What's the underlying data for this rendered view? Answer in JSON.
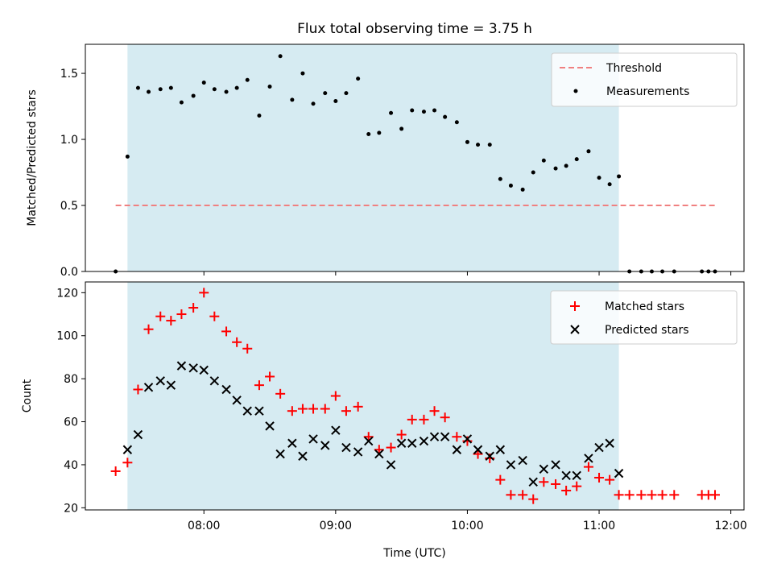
{
  "chart_data": [
    {
      "type": "scatter",
      "title": "Flux total observing time = 3.75 h",
      "xlabel": "",
      "ylabel": "Matched/Predicted stars",
      "xlim_hours": [
        7.1,
        12.1
      ],
      "ylim": [
        0,
        1.72
      ],
      "yticks": [
        0.0,
        0.5,
        1.0,
        1.5
      ],
      "ytick_labels": [
        "0.0",
        "0.5",
        "1.0",
        "1.5"
      ],
      "observing_window_hours": [
        7.42,
        11.15
      ],
      "threshold": {
        "name": "Threshold",
        "value": 0.5,
        "x_range_hours": [
          7.33,
          11.88
        ],
        "color": "#f08080"
      },
      "legend": {
        "placement": "top-right",
        "entries": [
          "Threshold",
          "Measurements"
        ]
      },
      "series": [
        {
          "name": "Measurements",
          "color": "#000000",
          "x": [
            7.33,
            7.42,
            7.5,
            7.58,
            7.67,
            7.75,
            7.83,
            7.92,
            8.0,
            8.08,
            8.17,
            8.25,
            8.33,
            8.42,
            8.5,
            8.58,
            8.67,
            8.75,
            8.83,
            8.92,
            9.0,
            9.08,
            9.17,
            9.25,
            9.33,
            9.42,
            9.5,
            9.58,
            9.67,
            9.75,
            9.83,
            9.92,
            10.0,
            10.08,
            10.17,
            10.25,
            10.33,
            10.42,
            10.5,
            10.58,
            10.67,
            10.75,
            10.83,
            10.92,
            11.0,
            11.08,
            11.15,
            11.23,
            11.32,
            11.4,
            11.48,
            11.57,
            11.78,
            11.83,
            11.88
          ],
          "y": [
            0.0,
            0.87,
            1.39,
            1.36,
            1.38,
            1.39,
            1.28,
            1.33,
            1.43,
            1.38,
            1.36,
            1.39,
            1.45,
            1.18,
            1.4,
            1.63,
            1.3,
            1.5,
            1.27,
            1.35,
            1.29,
            1.35,
            1.46,
            1.04,
            1.05,
            1.2,
            1.08,
            1.22,
            1.21,
            1.22,
            1.17,
            1.13,
            0.98,
            0.96,
            0.96,
            0.7,
            0.65,
            0.62,
            0.75,
            0.84,
            0.78,
            0.8,
            0.85,
            0.91,
            0.71,
            0.66,
            0.72,
            0.0,
            0.0,
            0.0,
            0.0,
            0.0,
            0.0,
            0.0,
            0.0
          ]
        }
      ]
    },
    {
      "type": "scatter",
      "title": "",
      "xlabel": "Time (UTC)",
      "ylabel": "Count",
      "xlim_hours": [
        7.1,
        12.1
      ],
      "ylim": [
        19,
        125
      ],
      "yticks": [
        20,
        40,
        60,
        80,
        100,
        120
      ],
      "xticks_hours": [
        8,
        9,
        10,
        11,
        12
      ],
      "xtick_labels": [
        "08:00",
        "09:00",
        "10:00",
        "11:00",
        "12:00"
      ],
      "observing_window_hours": [
        7.42,
        11.15
      ],
      "legend": {
        "placement": "top-right",
        "entries": [
          "Matched stars",
          "Predicted stars"
        ]
      },
      "series": [
        {
          "name": "Matched stars",
          "marker": "+",
          "color": "#ff0000",
          "x": [
            7.33,
            7.42,
            7.5,
            7.58,
            7.67,
            7.75,
            7.83,
            7.92,
            8.0,
            8.08,
            8.17,
            8.25,
            8.33,
            8.42,
            8.5,
            8.58,
            8.67,
            8.75,
            8.83,
            8.92,
            9.0,
            9.08,
            9.17,
            9.25,
            9.33,
            9.42,
            9.5,
            9.58,
            9.67,
            9.75,
            9.83,
            9.92,
            10.0,
            10.08,
            10.17,
            10.25,
            10.33,
            10.42,
            10.5,
            10.58,
            10.67,
            10.75,
            10.83,
            10.92,
            11.0,
            11.08,
            11.15,
            11.23,
            11.32,
            11.4,
            11.48,
            11.57,
            11.78,
            11.83,
            11.88
          ],
          "y": [
            37,
            41,
            75,
            103,
            109,
            107,
            110,
            113,
            120,
            109,
            102,
            97,
            94,
            77,
            81,
            73,
            65,
            66,
            66,
            66,
            72,
            65,
            67,
            53,
            47,
            48,
            54,
            61,
            61,
            65,
            62,
            53,
            51,
            45,
            43,
            33,
            26,
            26,
            24,
            32,
            31,
            28,
            30,
            39,
            34,
            33,
            26,
            26,
            26,
            26,
            26,
            26,
            26,
            26,
            26
          ]
        },
        {
          "name": "Predicted stars",
          "marker": "x",
          "color": "#000000",
          "x": [
            7.42,
            7.5,
            7.58,
            7.67,
            7.75,
            7.83,
            7.92,
            8.0,
            8.08,
            8.17,
            8.25,
            8.33,
            8.42,
            8.5,
            8.58,
            8.67,
            8.75,
            8.83,
            8.92,
            9.0,
            9.08,
            9.17,
            9.25,
            9.33,
            9.42,
            9.5,
            9.58,
            9.67,
            9.75,
            9.83,
            9.92,
            10.0,
            10.08,
            10.17,
            10.25,
            10.33,
            10.42,
            10.5,
            10.58,
            10.67,
            10.75,
            10.83,
            10.92,
            11.0,
            11.08,
            11.15
          ],
          "y": [
            47,
            54,
            76,
            79,
            77,
            86,
            85,
            84,
            79,
            75,
            70,
            65,
            65,
            58,
            45,
            50,
            44,
            52,
            49,
            56,
            48,
            46,
            51,
            45,
            40,
            50,
            50,
            51,
            53,
            53,
            47,
            52,
            47,
            44,
            47,
            40,
            42,
            32,
            38,
            40,
            35,
            35,
            43,
            48,
            50,
            36
          ]
        }
      ]
    }
  ]
}
